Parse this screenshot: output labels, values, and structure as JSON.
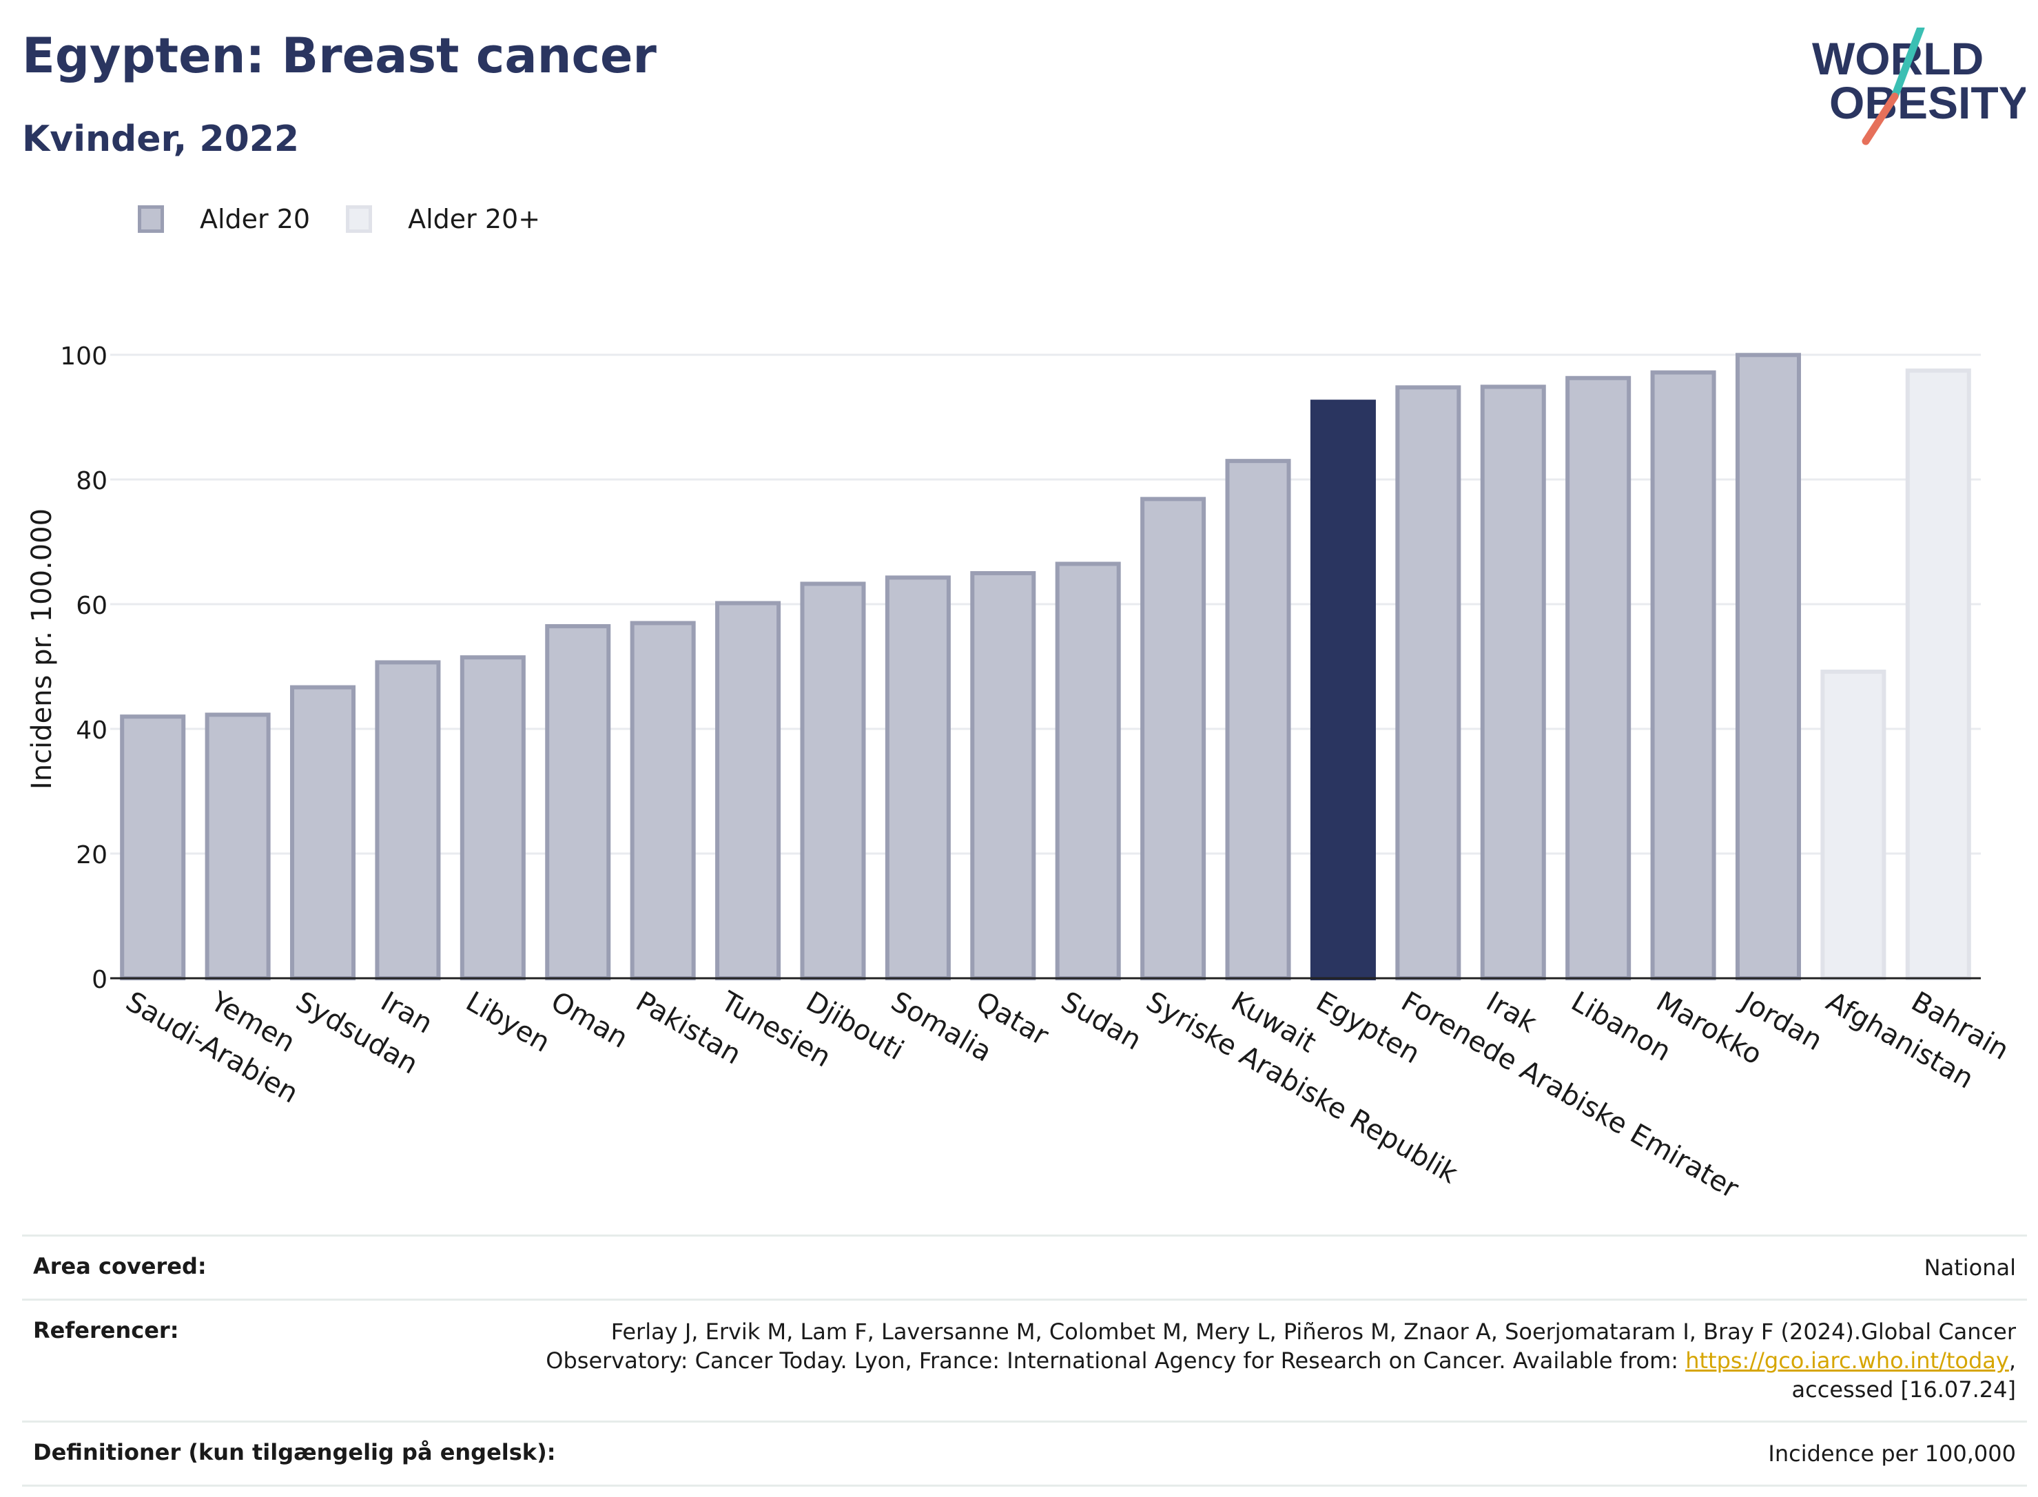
{
  "header": {
    "title": "Egypten: Breast cancer",
    "subtitle": "Kvinder, 2022"
  },
  "logo": {
    "line1": "WORLD",
    "line2": "OBESITY"
  },
  "colors": {
    "highlight": "#2a3560",
    "alder20_fill": "#bfc2d0",
    "alder20_stroke": "#9a9eb3",
    "alder20plus_fill": "#eceef3",
    "alder20plus_stroke": "#e0e2e9",
    "logo_teal": "#3bbfb3",
    "logo_coral": "#e6705a"
  },
  "chart_data": {
    "type": "bar",
    "ylabel": "Incidens pr. 100.000",
    "xlabel": "",
    "ylim": [
      0,
      100
    ],
    "yticks": [
      0,
      20,
      40,
      60,
      80,
      100
    ],
    "grid": true,
    "legend": {
      "placement": "top-left",
      "entries": [
        {
          "name": "Alder 20",
          "swatch": "alder20"
        },
        {
          "name": "Alder 20+",
          "swatch": "alder20plus"
        }
      ]
    },
    "categories": [
      "Saudi-Arabien",
      "Yemen",
      "Sydsudan",
      "Iran",
      "Libyen",
      "Oman",
      "Pakistan",
      "Tunesien",
      "Djibouti",
      "Somalia",
      "Qatar",
      "Sudan",
      "Syriske Arabiske Republik",
      "Kuwait",
      "Egypten",
      "Forenede Arabiske Emirater",
      "Irak",
      "Libanon",
      "Marokko",
      "Jordan",
      "Afghanistan",
      "Bahrain"
    ],
    "values": [
      42.3,
      42.6,
      47.0,
      51.0,
      51.8,
      56.8,
      57.3,
      60.5,
      63.6,
      64.6,
      65.3,
      66.8,
      77.2,
      83.3,
      92.8,
      95.1,
      95.2,
      96.6,
      97.5,
      100.3,
      49.5,
      97.8
    ],
    "series_group": [
      "Alder 20",
      "Alder 20",
      "Alder 20",
      "Alder 20",
      "Alder 20",
      "Alder 20",
      "Alder 20",
      "Alder 20",
      "Alder 20",
      "Alder 20",
      "Alder 20",
      "Alder 20",
      "Alder 20",
      "Alder 20",
      "Alder 20",
      "Alder 20",
      "Alder 20",
      "Alder 20",
      "Alder 20",
      "Alder 20",
      "Alder 20+",
      "Alder 20+"
    ],
    "highlight": "Egypten"
  },
  "meta": {
    "area_label": "Area covered:",
    "area_value": "National",
    "ref_label": "Referencer:",
    "ref_text_1": "Ferlay J, Ervik M, Lam F, Laversanne M, Colombet M, Mery L, Piñeros M, Znaor A, Soerjomataram I, Bray F (2024).Global Cancer Observatory: Cancer Today. Lyon, France: International Agency for Research on Cancer. Available from: ",
    "ref_link": "https://gco.iarc.who.int/today",
    "ref_text_2": ", accessed [16.07.24]",
    "def_label": "Definitioner (kun tilgængelig på engelsk):",
    "def_value": "Incidence per 100,000"
  }
}
